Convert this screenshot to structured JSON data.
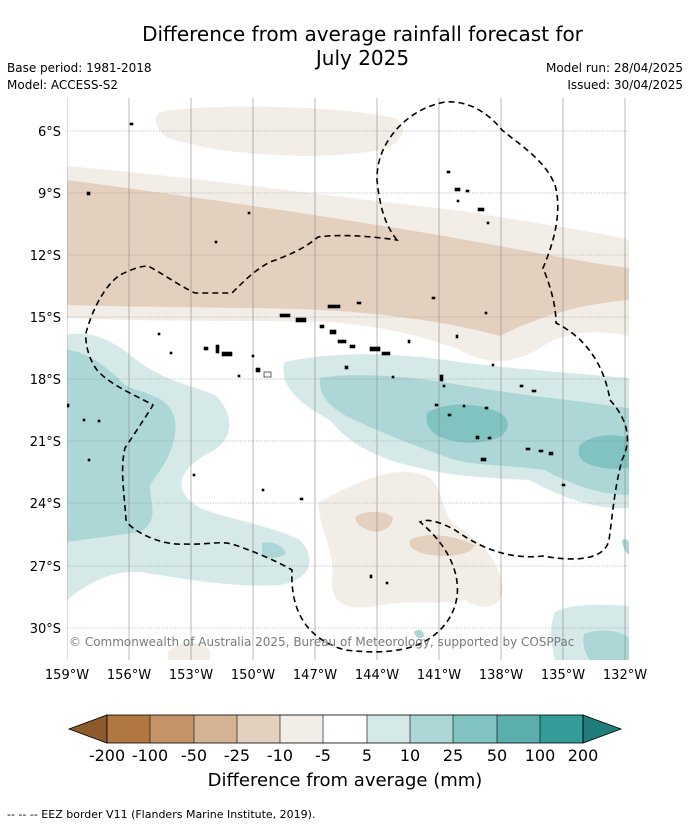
{
  "title_line1": "Difference from average rainfall forecast for",
  "title_line2": "July 2025",
  "base_period": "Base period: 1981-2018",
  "model": "Model: ACCESS-S2",
  "model_run": "Model run: 28/04/2025",
  "issued": "Issued: 30/04/2025",
  "lat_labels": [
    "6°S",
    "9°S",
    "12°S",
    "15°S",
    "18°S",
    "21°S",
    "24°S",
    "27°S",
    "30°S"
  ],
  "lon_labels": [
    "159°W",
    "156°W",
    "153°W",
    "150°W",
    "147°W",
    "144°W",
    "141°W",
    "138°W",
    "135°W",
    "132°W"
  ],
  "copyright": "© Commonwealth of Australia 2025, Bureau of Meteorology, supported by COSPPac",
  "colorbar": {
    "tick_labels": [
      "-200",
      "-100",
      "-50",
      "-25",
      "-10",
      "-5",
      "5",
      "10",
      "25",
      "50",
      "100",
      "200"
    ],
    "colors": [
      "#8c5a2b",
      "#b07840",
      "#c49468",
      "#d4b393",
      "#e4d0bf",
      "#f2ede7",
      "#ffffff",
      "#d4e9e8",
      "#acd7d6",
      "#80c3c1",
      "#5aafad",
      "#349c99",
      "#207d7b"
    ],
    "title": "Difference from average (mm)"
  },
  "legend_footnote": "--  --  -- EEZ border V11 (Flanders Marine Institute, 2019)."
}
